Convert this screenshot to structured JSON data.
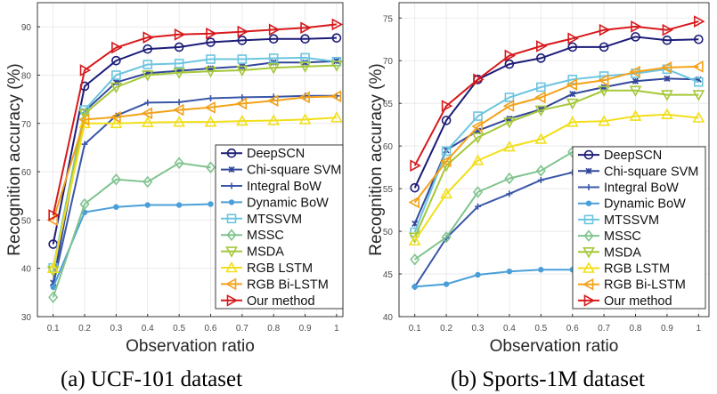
{
  "legend_labels": [
    "DeepSCN",
    "Chi-square SVM",
    "Integral BoW",
    "Dynamic BoW",
    "MTSSVM",
    "MSSC",
    "MSDA",
    "RGB LSTM",
    "RGB Bi-LSTM",
    "Our method"
  ],
  "series_style": [
    {
      "color": "#1c1c78",
      "marker": "circle"
    },
    {
      "color": "#33479a",
      "marker": "x"
    },
    {
      "color": "#3a57a8",
      "marker": "plus"
    },
    {
      "color": "#4a9fd8",
      "marker": "dot"
    },
    {
      "color": "#6cc5e0",
      "marker": "square"
    },
    {
      "color": "#80c48f",
      "marker": "diamond"
    },
    {
      "color": "#a5c83a",
      "marker": "triangle-down"
    },
    {
      "color": "#f2df1a",
      "marker": "triangle-up"
    },
    {
      "color": "#f3a21a",
      "marker": "triangle-left"
    },
    {
      "color": "#d7191c",
      "marker": "triangle-right"
    }
  ],
  "chart_data": [
    {
      "type": "line",
      "caption": "(a) UCF-101 dataset",
      "xlabel": "Observation ratio",
      "ylabel": "Recognition accuracy (%)",
      "x": [
        0.1,
        0.2,
        0.3,
        0.4,
        0.5,
        0.6,
        0.7,
        0.8,
        0.9,
        1
      ],
      "xticks": [
        "0.1",
        "0.2",
        "0.3",
        "0.4",
        "0.5",
        "0.6",
        "0.7",
        "0.8",
        "0.9",
        "1"
      ],
      "yticks": [
        30,
        40,
        50,
        60,
        70,
        80,
        90
      ],
      "xlim": [
        0.05,
        1.02
      ],
      "ylim": [
        30,
        95
      ],
      "grid": true,
      "legend": "bottom-right",
      "series": [
        {
          "name": "DeepSCN",
          "values": [
            45,
            77.7,
            83.0,
            85.4,
            85.8,
            86.8,
            87.2,
            87.5,
            87.5,
            87.7
          ]
        },
        {
          "name": "Chi-square SVM",
          "values": [
            37,
            72.5,
            78.5,
            80.4,
            80.9,
            81.4,
            81.8,
            82.6,
            82.6,
            82.9
          ]
        },
        {
          "name": "Integral BoW",
          "values": [
            36.5,
            65.7,
            71.6,
            74.3,
            74.4,
            75.2,
            75.4,
            75.5,
            75.7,
            75.7
          ]
        },
        {
          "name": "Dynamic BoW",
          "values": [
            36.1,
            51.6,
            52.7,
            53.1,
            53.1,
            53.3,
            null,
            null,
            null,
            null
          ]
        },
        {
          "name": "MTSSVM",
          "values": [
            40.1,
            72.8,
            80.0,
            82.2,
            82.4,
            83.3,
            83.3,
            83.5,
            83.6,
            82.8
          ]
        },
        {
          "name": "MSSC",
          "values": [
            34,
            53.3,
            58.4,
            57.9,
            61.8,
            60.9,
            null,
            null,
            null,
            null
          ]
        },
        {
          "name": "MSDA",
          "values": [
            39.5,
            72.0,
            77.5,
            80.0,
            80.5,
            80.8,
            81.0,
            81.5,
            81.8,
            82.0
          ]
        },
        {
          "name": "RGB LSTM",
          "values": [
            40,
            70.0,
            70.0,
            70.2,
            70.3,
            70.3,
            70.5,
            70.6,
            70.8,
            71.2
          ]
        },
        {
          "name": "RGB Bi-LSTM",
          "values": [
            50,
            70.8,
            71.3,
            72.1,
            72.8,
            73.3,
            74.1,
            74.7,
            75.4,
            75.6
          ]
        },
        {
          "name": "Our method",
          "values": [
            51,
            81.0,
            85.7,
            87.8,
            88.4,
            88.6,
            89.0,
            89.4,
            89.8,
            90.5
          ]
        }
      ]
    },
    {
      "type": "line",
      "caption": "(b) Sports-1M dataset",
      "xlabel": "Observation ratio",
      "ylabel": "Recognition accuracy (%)",
      "x": [
        0.1,
        0.2,
        0.3,
        0.4,
        0.5,
        0.6,
        0.7,
        0.8,
        0.9,
        1
      ],
      "xticks": [
        "0.1",
        "0.2",
        "0.3",
        "0.4",
        "0.5",
        "0.6",
        "0.7",
        "0.8",
        "0.9",
        "1"
      ],
      "yticks": [
        40,
        45,
        50,
        55,
        60,
        65,
        70,
        75
      ],
      "xlim": [
        0.05,
        1.033
      ],
      "ylim": [
        40,
        76.8
      ],
      "grid": true,
      "legend": "bottom-right",
      "series": [
        {
          "name": "DeepSCN",
          "values": [
            55.1,
            63.0,
            67.8,
            69.6,
            70.3,
            71.6,
            71.6,
            72.8,
            72.4,
            72.5
          ]
        },
        {
          "name": "Chi-square SVM",
          "values": [
            50.9,
            59.5,
            61.8,
            63.2,
            64.3,
            66.1,
            66.9,
            67.6,
            67.9,
            67.8
          ]
        },
        {
          "name": "Integral BoW",
          "values": [
            43.5,
            49.2,
            52.9,
            54.4,
            56.0,
            56.9,
            null,
            null,
            null,
            null
          ]
        },
        {
          "name": "Dynamic BoW",
          "values": [
            43.5,
            43.8,
            44.9,
            45.3,
            45.5,
            45.5,
            null,
            null,
            null,
            null
          ]
        },
        {
          "name": "MTSSVM",
          "values": [
            49.9,
            59.4,
            63.5,
            65.7,
            66.9,
            67.8,
            68.2,
            68.5,
            69.0,
            67.5
          ]
        },
        {
          "name": "MSSC",
          "values": [
            46.7,
            49.3,
            54.6,
            56.2,
            57.1,
            59.3,
            null,
            null,
            null,
            null
          ]
        },
        {
          "name": "MSDA",
          "values": [
            49.3,
            57.7,
            61.0,
            62.8,
            64.2,
            65.0,
            66.5,
            66.5,
            66.0,
            66.0
          ]
        },
        {
          "name": "RGB LSTM",
          "values": [
            48.9,
            54.4,
            58.3,
            59.9,
            60.8,
            62.8,
            62.9,
            63.5,
            63.7,
            63.3
          ]
        },
        {
          "name": "RGB Bi-LSTM",
          "values": [
            53.4,
            58.2,
            62.3,
            64.7,
            65.7,
            67.2,
            67.7,
            68.7,
            69.2,
            69.3
          ]
        },
        {
          "name": "Our method",
          "values": [
            57.7,
            64.7,
            67.8,
            70.6,
            71.7,
            72.6,
            73.6,
            74.0,
            73.6,
            74.6
          ]
        }
      ]
    }
  ]
}
